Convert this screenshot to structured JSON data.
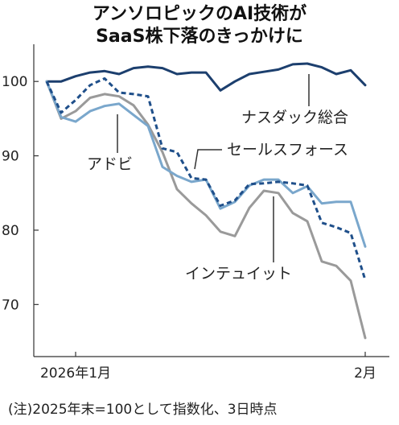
{
  "title_line1": "アンソロピックのAI技術が",
  "title_line2": "SaaS株下落のきっかけに",
  "note": "(注)2025年末=100として指数化、3日時点",
  "chart_data": {
    "type": "line",
    "title": "アンソロピックのAI技術がSaaS株下落のきっかけに",
    "ylim": [
      63,
      105
    ],
    "yticks": [
      70,
      80,
      90,
      100
    ],
    "grid": false,
    "xtick_labels": [
      {
        "label": "2026年1月",
        "x": 2
      },
      {
        "label": "2月",
        "x": 22
      }
    ],
    "x": [
      0,
      1,
      2,
      3,
      4,
      5,
      6,
      7,
      8,
      9,
      10,
      11,
      12,
      13,
      14,
      15,
      16,
      17,
      18,
      19,
      20,
      21,
      22,
      23
    ],
    "series": [
      {
        "name": "ナスダック総合",
        "color": "#1c3f6e",
        "style": "solid",
        "values": [
          100,
          100,
          100.7,
          101.2,
          101.4,
          101,
          101.8,
          102,
          101.8,
          101,
          101.2,
          101.2,
          98.8,
          100,
          101,
          101.3,
          101.6,
          102.3,
          102.4,
          101.9,
          101,
          101.5,
          99.5,
          null
        ]
      },
      {
        "name": "アドビ",
        "color": "#7aa7cc",
        "style": "solid",
        "values": [
          100,
          95.2,
          94.6,
          96,
          96.7,
          97,
          95.5,
          94,
          88.5,
          87.3,
          86.5,
          86.8,
          82.9,
          83.8,
          86,
          86.8,
          86.8,
          85,
          85.9,
          83.6,
          83.8,
          83.8,
          77.8,
          null
        ]
      },
      {
        "name": "セールスフォース",
        "color": "#1f4f8a",
        "style": "dashed",
        "values": [
          100,
          95.8,
          97.5,
          99.5,
          100.4,
          98.5,
          98.3,
          98,
          91,
          90.5,
          87,
          86.8,
          83.3,
          84,
          86.2,
          86.3,
          86.5,
          86.3,
          86,
          81,
          80.4,
          79.6,
          73.3,
          null
        ]
      },
      {
        "name": "インテュイット",
        "color": "#9a9a9a",
        "style": "solid",
        "values": [
          100,
          95,
          96,
          97.8,
          98.3,
          98,
          96.8,
          94.2,
          90.5,
          85.5,
          83.6,
          82,
          79.8,
          79.2,
          83,
          85.3,
          85,
          82.3,
          81.2,
          75.8,
          75.2,
          73.2,
          65.5,
          null
        ]
      }
    ],
    "labels": [
      {
        "series": "ナスダック総合",
        "text": "ナスダック総合"
      },
      {
        "series": "アドビ",
        "text": "アドビ"
      },
      {
        "series": "セールスフォース",
        "text": "セールスフォース"
      },
      {
        "series": "インテュイット",
        "text": "インテュイット"
      }
    ]
  }
}
